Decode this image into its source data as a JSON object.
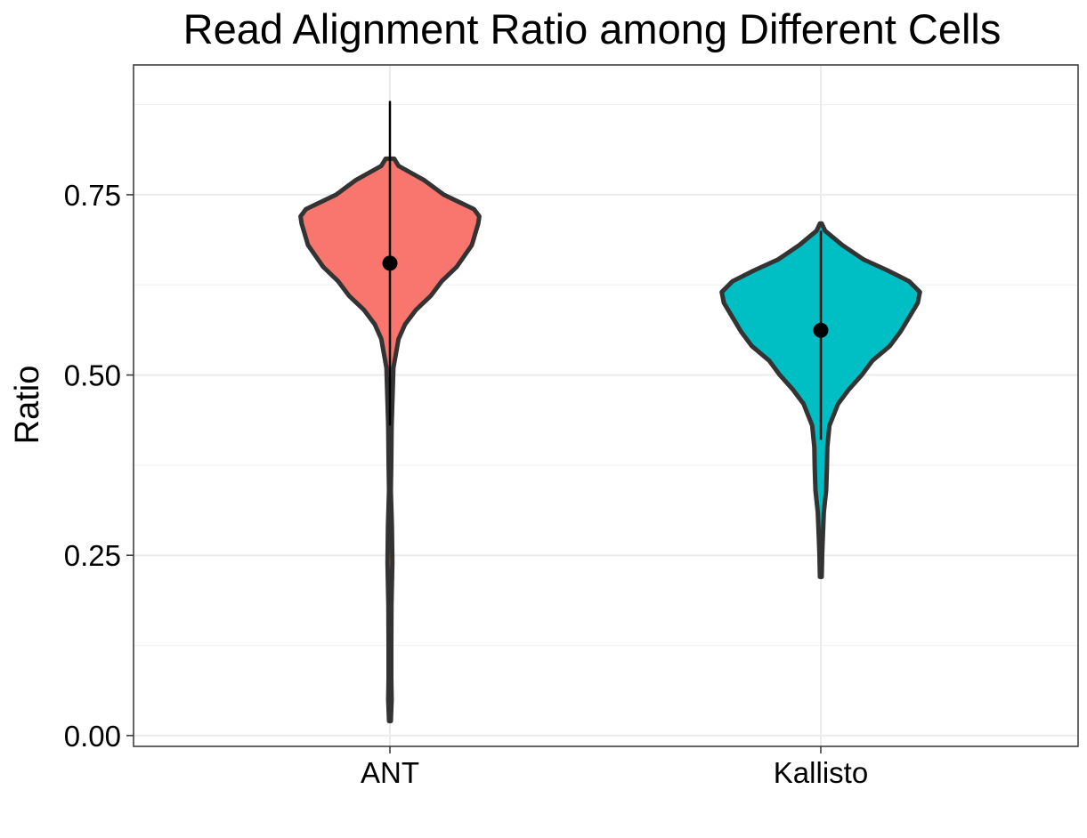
{
  "chart_data": {
    "type": "violin",
    "title": "Read Alignment Ratio among Different Cells",
    "xlabel": "",
    "ylabel": "Ratio",
    "categories": [
      "ANT",
      "Kallisto"
    ],
    "ylim": [
      -0.015,
      0.93
    ],
    "yticks": [
      0.0,
      0.25,
      0.5,
      0.75
    ],
    "ytick_labels": [
      "0.00",
      "0.25",
      "0.50",
      "0.75"
    ],
    "grid": true,
    "legend": "none",
    "series": [
      {
        "category": "ANT",
        "color": "#F8766D",
        "range": [
          0.02,
          0.8
        ],
        "mean": 0.655,
        "interval": [
          0.43,
          0.88
        ],
        "density_profile": [
          [
            0.02,
            0.004
          ],
          [
            0.05,
            0.008
          ],
          [
            0.08,
            0.006
          ],
          [
            0.12,
            0.006
          ],
          [
            0.18,
            0.007
          ],
          [
            0.24,
            0.011
          ],
          [
            0.29,
            0.009
          ],
          [
            0.34,
            0.004
          ],
          [
            0.38,
            0.006
          ],
          [
            0.43,
            0.008
          ],
          [
            0.47,
            0.012
          ],
          [
            0.51,
            0.016
          ],
          [
            0.55,
            0.04
          ],
          [
            0.57,
            0.07
          ],
          [
            0.59,
            0.12
          ],
          [
            0.61,
            0.19
          ],
          [
            0.63,
            0.24
          ],
          [
            0.65,
            0.31
          ],
          [
            0.68,
            0.38
          ],
          [
            0.71,
            0.41
          ],
          [
            0.72,
            0.415
          ],
          [
            0.73,
            0.39
          ],
          [
            0.75,
            0.25
          ],
          [
            0.77,
            0.16
          ],
          [
            0.79,
            0.04
          ],
          [
            0.8,
            0.02
          ]
        ]
      },
      {
        "category": "Kallisto",
        "color": "#00BFC4",
        "range": [
          0.22,
          0.71
        ],
        "mean": 0.562,
        "interval": [
          0.41,
          0.7
        ],
        "density_profile": [
          [
            0.22,
            0.004
          ],
          [
            0.25,
            0.006
          ],
          [
            0.28,
            0.01
          ],
          [
            0.31,
            0.014
          ],
          [
            0.34,
            0.025
          ],
          [
            0.37,
            0.028
          ],
          [
            0.4,
            0.03
          ],
          [
            0.43,
            0.04
          ],
          [
            0.46,
            0.08
          ],
          [
            0.48,
            0.13
          ],
          [
            0.5,
            0.19
          ],
          [
            0.52,
            0.24
          ],
          [
            0.54,
            0.32
          ],
          [
            0.56,
            0.37
          ],
          [
            0.58,
            0.41
          ],
          [
            0.6,
            0.45
          ],
          [
            0.615,
            0.46
          ],
          [
            0.63,
            0.41
          ],
          [
            0.645,
            0.31
          ],
          [
            0.66,
            0.2
          ],
          [
            0.68,
            0.1
          ],
          [
            0.7,
            0.02
          ],
          [
            0.71,
            0.004
          ]
        ]
      }
    ]
  }
}
